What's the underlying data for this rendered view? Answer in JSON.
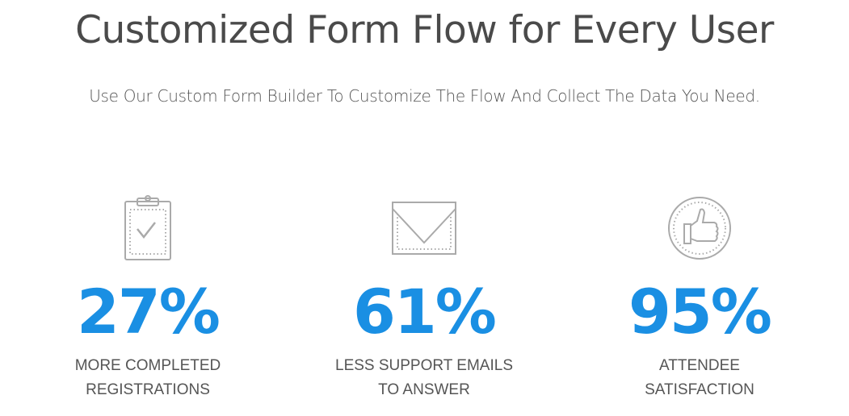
{
  "header": {
    "title": "Customized Form Flow for Every User",
    "subtitle": "Use Our Custom Form Builder To Customize The Flow And Collect The Data You Need."
  },
  "accent_color": "#1a8fe3",
  "stats": [
    {
      "icon": "clipboard-check-icon",
      "value": "27%",
      "line1": "MORE COMPLETED",
      "line2": "REGISTRATIONS"
    },
    {
      "icon": "envelope-icon",
      "value": "61%",
      "line1": "LESS SUPPORT EMAILS",
      "line2": "TO ANSWER"
    },
    {
      "icon": "thumbs-up-icon",
      "value": "95%",
      "line1": "ATTENDEE",
      "line2": "SATISFACTION"
    }
  ]
}
